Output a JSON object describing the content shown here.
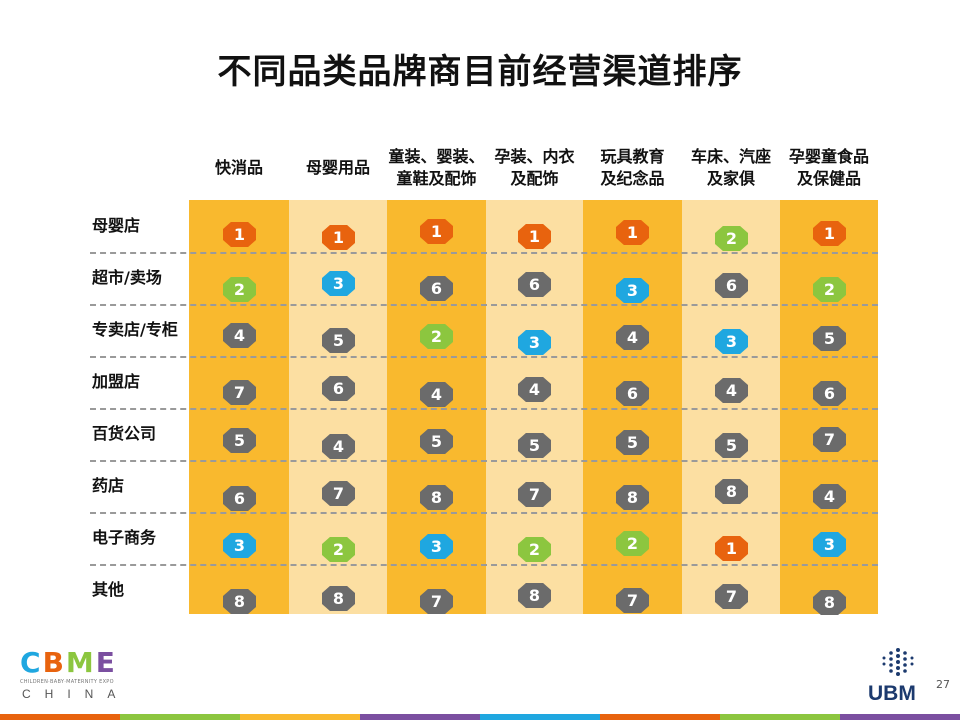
{
  "title": "不同品类品牌商目前经营渠道排序",
  "colors": {
    "band_dark": "#F9B92E",
    "band_light": "#FCDFA2",
    "rank_colors": {
      "1": "#E8630E",
      "2": "#8CC63F",
      "3": "#1FA7E0",
      "other": "#6B6B6B"
    }
  },
  "chart_data": {
    "type": "table",
    "columns": [
      {
        "lines": [
          "快消品"
        ]
      },
      {
        "lines": [
          "母婴用品"
        ]
      },
      {
        "lines": [
          "童装、婴装、",
          "童鞋及配饰"
        ]
      },
      {
        "lines": [
          "孕装、内衣",
          "及配饰"
        ]
      },
      {
        "lines": [
          "玩具教育",
          "及纪念品"
        ]
      },
      {
        "lines": [
          "车床、汽座",
          "及家俱"
        ]
      },
      {
        "lines": [
          "孕婴童食品",
          "及保健品"
        ]
      }
    ],
    "rows": [
      "母婴店",
      "超市/卖场",
      "专卖店/专柜",
      "加盟店",
      "百货公司",
      "药店",
      "电子商务",
      "其他"
    ],
    "ranks": [
      [
        1,
        1,
        1,
        1,
        1,
        2,
        1
      ],
      [
        2,
        3,
        6,
        6,
        3,
        6,
        2
      ],
      [
        4,
        5,
        2,
        3,
        4,
        3,
        5
      ],
      [
        7,
        6,
        4,
        4,
        6,
        4,
        6
      ],
      [
        5,
        4,
        5,
        5,
        5,
        5,
        7
      ],
      [
        6,
        7,
        8,
        7,
        8,
        8,
        4
      ],
      [
        3,
        2,
        3,
        2,
        2,
        1,
        3
      ],
      [
        8,
        8,
        7,
        8,
        7,
        7,
        8
      ]
    ]
  },
  "footer": {
    "logo_left": {
      "letters": [
        "C",
        "B",
        "M",
        "E"
      ],
      "tagline": "CHILDREN·BABY·MATERNITY EXPO",
      "sub": "CHINA"
    },
    "logo_right": "UBM",
    "page_number": "27",
    "strip_colors": [
      "#E8630E",
      "#8CC63F",
      "#F9B92E",
      "#7B4FA0",
      "#1FA7E0",
      "#E8630E",
      "#8CC63F",
      "#7B4FA0"
    ]
  }
}
